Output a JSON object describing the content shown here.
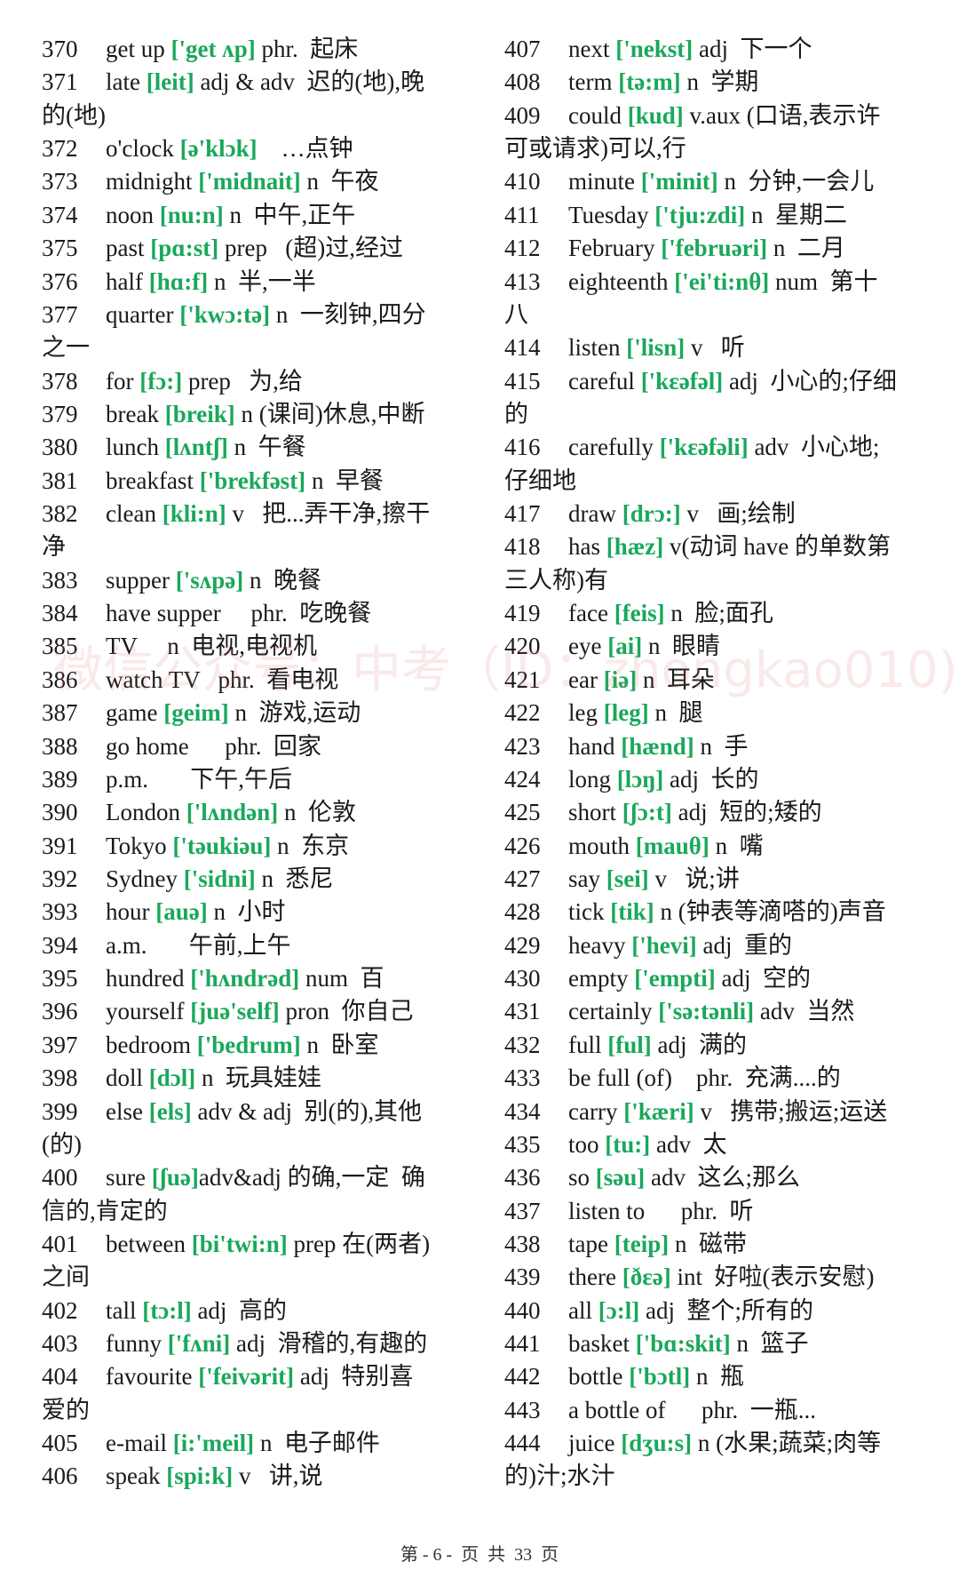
{
  "accent_color": "#19a85a",
  "columns": {
    "left": [
      {
        "num": "370",
        "word": "get up ",
        "ipa": "['get ʌp]",
        "rest": " phr.  起床"
      },
      {
        "num": "371",
        "word": "late ",
        "ipa": "[leit]",
        "rest": " adj & adv  迟的(地),晚",
        "cont": "的(地)"
      },
      {
        "num": "372",
        "word": "o'clock ",
        "ipa": "[ə'klɔk]",
        "rest": "    …点钟"
      },
      {
        "num": "373",
        "word": "midnight ",
        "ipa": "['midnait]",
        "rest": " n  午夜"
      },
      {
        "num": "374",
        "word": "noon ",
        "ipa": "[nu:n]",
        "rest": " n  中午,正午"
      },
      {
        "num": "375",
        "word": "past ",
        "ipa": "[pɑ:st]",
        "rest": " prep   (超)过,经过"
      },
      {
        "num": "376",
        "word": "half ",
        "ipa": "[hɑ:f]",
        "rest": " n  半,一半"
      },
      {
        "num": "377",
        "word": "quarter ",
        "ipa": "['kwɔ:tə]",
        "rest": " n  一刻钟,四分",
        "cont": "之一"
      },
      {
        "num": "378",
        "word": "for ",
        "ipa": "[fɔ:]",
        "rest": " prep   为,给"
      },
      {
        "num": "379",
        "word": "break ",
        "ipa": "[breik]",
        "rest": " n (课间)休息,中断"
      },
      {
        "num": "380",
        "word": "lunch ",
        "ipa": "[lʌntʃ]",
        "rest": " n  午餐"
      },
      {
        "num": "381",
        "word": "breakfast ",
        "ipa": "['brekfəst]",
        "rest": " n  早餐"
      },
      {
        "num": "382",
        "word": "clean ",
        "ipa": "[kli:n]",
        "rest": " v   把...弄干净,擦干",
        "cont": "净"
      },
      {
        "num": "383",
        "word": "supper ",
        "ipa": "['sʌpə]",
        "rest": " n  晚餐"
      },
      {
        "num": "384",
        "word": "have supper",
        "rest": "     phr.  吃晚餐"
      },
      {
        "num": "385",
        "word": "TV",
        "rest": "     n  电视,电视机"
      },
      {
        "num": "386",
        "word": "watch TV",
        "rest": "   phr.  看电视"
      },
      {
        "num": "387",
        "word": "game ",
        "ipa": "[geim]",
        "rest": " n  游戏,运动"
      },
      {
        "num": "388",
        "word": "go home",
        "rest": "      phr.  回家"
      },
      {
        "num": "389",
        "word": "p.m.",
        "rest": "       下午,午后"
      },
      {
        "num": "390",
        "word": "London ",
        "ipa": "['lʌndən]",
        "rest": " n  伦敦"
      },
      {
        "num": "391",
        "word": "Tokyo ",
        "ipa": "['təukiəu]",
        "rest": " n  东京"
      },
      {
        "num": "392",
        "word": "Sydney ",
        "ipa": "['sidni]",
        "rest": " n  悉尼"
      },
      {
        "num": "393",
        "word": "hour ",
        "ipa": "[auə]",
        "rest": " n  小时"
      },
      {
        "num": "394",
        "word": "a.m.",
        "rest": "       午前,上午"
      },
      {
        "num": "395",
        "word": "hundred ",
        "ipa": "['hʌndrəd]",
        "rest": " num  百"
      },
      {
        "num": "396",
        "word": "yourself ",
        "ipa": "[juə'self]",
        "rest": " pron  你自己"
      },
      {
        "num": "397",
        "word": "bedroom ",
        "ipa": "['bedrum]",
        "rest": " n  卧室"
      },
      {
        "num": "398",
        "word": "doll ",
        "ipa": "[dɔl]",
        "rest": " n  玩具娃娃"
      },
      {
        "num": "399",
        "word": "else ",
        "ipa": "[els]",
        "rest": " adv & adj  别(的),其他",
        "cont": "(的)"
      },
      {
        "num": "400",
        "word": "sure ",
        "ipa": "[ʃuə]",
        "rest": "adv&adj 的确,一定  确",
        "cont": "信的,肯定的"
      },
      {
        "num": "401",
        "word": "between ",
        "ipa": "[bi'twi:n]",
        "rest": " prep 在(两者)",
        "cont": "之间"
      },
      {
        "num": "402",
        "word": "tall ",
        "ipa": "[tɔ:l]",
        "rest": " adj  高的"
      },
      {
        "num": "403",
        "word": "funny ",
        "ipa": "['fʌni]",
        "rest": " adj  滑稽的,有趣的"
      },
      {
        "num": "404",
        "word": "favourite ",
        "ipa": "['feivərit]",
        "rest": " adj  特别喜",
        "cont": "爱的"
      },
      {
        "num": "405",
        "word": "e-mail ",
        "ipa": "[i:'meil]",
        "rest": " n  电子邮件"
      },
      {
        "num": "406",
        "word": "speak ",
        "ipa": "[spi:k]",
        "rest": " v   讲,说"
      }
    ],
    "right": [
      {
        "num": "407",
        "word": "next ",
        "ipa": "['nekst]",
        "rest": " adj  下一个"
      },
      {
        "num": "408",
        "word": "term ",
        "ipa": "[tə:m]",
        "rest": " n  学期"
      },
      {
        "num": "409",
        "word": "could ",
        "ipa": "[kud]",
        "rest": " v.aux (口语,表示许",
        "cont": "可或请求)可以,行"
      },
      {
        "num": "410",
        "word": "minute ",
        "ipa": "['minit]",
        "rest": " n  分钟,一会儿"
      },
      {
        "num": "411",
        "word": "Tuesday ",
        "ipa": "['tju:zdi]",
        "rest": " n  星期二"
      },
      {
        "num": "412",
        "word": "February ",
        "ipa": "['februəri]",
        "rest": " n  二月"
      },
      {
        "num": "413",
        "word": "eighteenth ",
        "ipa": "['ei'ti:nθ]",
        "rest": " num  第十",
        "cont": "八"
      },
      {
        "num": "414",
        "word": "listen ",
        "ipa": "['lisn]",
        "rest": " v   听"
      },
      {
        "num": "415",
        "word": "careful ",
        "ipa": "['kɛəfəl]",
        "rest": " adj  小心的;仔细",
        "cont": "的"
      },
      {
        "num": "416",
        "word": "carefully ",
        "ipa": "['kɛəfəli]",
        "rest": " adv  小心地;",
        "cont": "仔细地"
      },
      {
        "num": "417",
        "word": "draw ",
        "ipa": "[drɔ:]",
        "rest": " v   画;绘制"
      },
      {
        "num": "418",
        "word": "has ",
        "ipa": "[hæz]",
        "rest": " v(动词 have 的单数第",
        "cont": "三人称)有"
      },
      {
        "num": "419",
        "word": "face ",
        "ipa": "[feis]",
        "rest": " n  脸;面孔"
      },
      {
        "num": "420",
        "word": "eye ",
        "ipa": "[ai]",
        "rest": " n  眼睛"
      },
      {
        "num": "421",
        "word": "ear ",
        "ipa": "[iə]",
        "rest": " n  耳朵"
      },
      {
        "num": "422",
        "word": "leg ",
        "ipa": "[leg]",
        "rest": " n  腿"
      },
      {
        "num": "423",
        "word": "hand ",
        "ipa": "[hænd]",
        "rest": " n  手"
      },
      {
        "num": "424",
        "word": "long ",
        "ipa": "[lɔŋ]",
        "rest": " adj  长的"
      },
      {
        "num": "425",
        "word": "short ",
        "ipa": "[ʃɔ:t]",
        "rest": " adj  短的;矮的"
      },
      {
        "num": "426",
        "word": "mouth ",
        "ipa": "[mauθ]",
        "rest": " n  嘴"
      },
      {
        "num": "427",
        "word": "say ",
        "ipa": "[sei]",
        "rest": " v   说;讲"
      },
      {
        "num": "428",
        "word": "tick ",
        "ipa": "[tik]",
        "rest": " n (钟表等滴嗒的)声音"
      },
      {
        "num": "429",
        "word": "heavy ",
        "ipa": "['hevi]",
        "rest": " adj  重的"
      },
      {
        "num": "430",
        "word": "empty ",
        "ipa": "['empti]",
        "rest": " adj  空的"
      },
      {
        "num": "431",
        "word": "certainly ",
        "ipa": "['sə:tənli]",
        "rest": " adv  当然"
      },
      {
        "num": "432",
        "word": "full ",
        "ipa": "[ful]",
        "rest": " adj  满的"
      },
      {
        "num": "433",
        "word": "be full (of)",
        "rest": "    phr.  充满....的"
      },
      {
        "num": "434",
        "word": "carry ",
        "ipa": "['kæri]",
        "rest": " v   携带;搬运;运送"
      },
      {
        "num": "435",
        "word": "too ",
        "ipa": "[tu:]",
        "rest": " adv  太"
      },
      {
        "num": "436",
        "word": "so ",
        "ipa": "[səu]",
        "rest": " adv  这么;那么"
      },
      {
        "num": "437",
        "word": "listen to",
        "rest": "      phr.  听"
      },
      {
        "num": "438",
        "word": "tape ",
        "ipa": "[teip]",
        "rest": " n  磁带"
      },
      {
        "num": "439",
        "word": "there ",
        "ipa": "[ðɛə]",
        "rest": " int  好啦(表示安慰)"
      },
      {
        "num": "440",
        "word": "all ",
        "ipa": "[ɔ:l]",
        "rest": " adj  整个;所有的"
      },
      {
        "num": "441",
        "word": "basket ",
        "ipa": "['bɑ:skit]",
        "rest": " n  篮子"
      },
      {
        "num": "442",
        "word": "bottle ",
        "ipa": "['bɔtl]",
        "rest": " n  瓶"
      },
      {
        "num": "443",
        "word": "a bottle of",
        "rest": "      phr.  一瓶..."
      },
      {
        "num": "444",
        "word": "juice ",
        "ipa": "[dʒu:s]",
        "rest": " n (水果;蔬菜;肉等",
        "cont": "的)汁;水汁"
      }
    ]
  },
  "watermark": "微信公众号：中考（ID：zhongkao010)",
  "footer": "第 - 6 -  页  共  33  页"
}
